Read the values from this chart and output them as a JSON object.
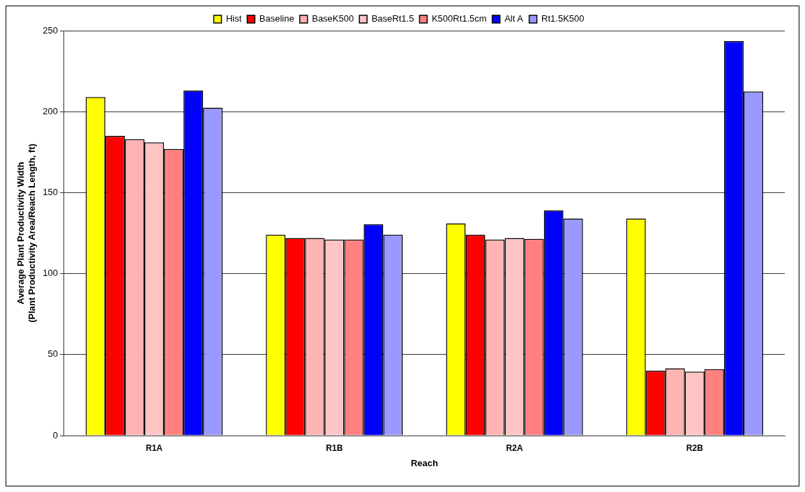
{
  "chart_data": {
    "type": "bar",
    "xlabel": "Reach",
    "ylabel": "Average Plant Productivity Width\n(Plant Productivity Area/Reach Length, ft)",
    "categories": [
      "R1A",
      "R1B",
      "R2A",
      "R2B"
    ],
    "series": [
      {
        "name": "Hist",
        "color": "#ffff00",
        "values": [
          209,
          124,
          131,
          134
        ]
      },
      {
        "name": "Baseline",
        "color": "#ff0000",
        "values": [
          185,
          122,
          124,
          40
        ]
      },
      {
        "name": "BaseK500",
        "color": "#ffb3b3",
        "values": [
          183,
          122,
          121,
          41.5
        ]
      },
      {
        "name": "BaseRt1.5",
        "color": "#ffc4c4",
        "values": [
          181,
          121,
          122,
          39.5
        ]
      },
      {
        "name": "K500Rt1.5cm",
        "color": "#ff8080",
        "values": [
          177,
          121,
          121.5,
          41
        ]
      },
      {
        "name": "Alt A",
        "color": "#0000ff",
        "values": [
          213,
          130.5,
          139,
          243.5
        ]
      },
      {
        "name": "Rt1.5K500",
        "color": "#9999ff",
        "values": [
          202.5,
          124,
          134,
          212.5
        ]
      }
    ],
    "ylim": [
      0,
      250
    ],
    "yticks": [
      0,
      50,
      100,
      150,
      200,
      250
    ],
    "grid": "y",
    "legend": "top"
  }
}
